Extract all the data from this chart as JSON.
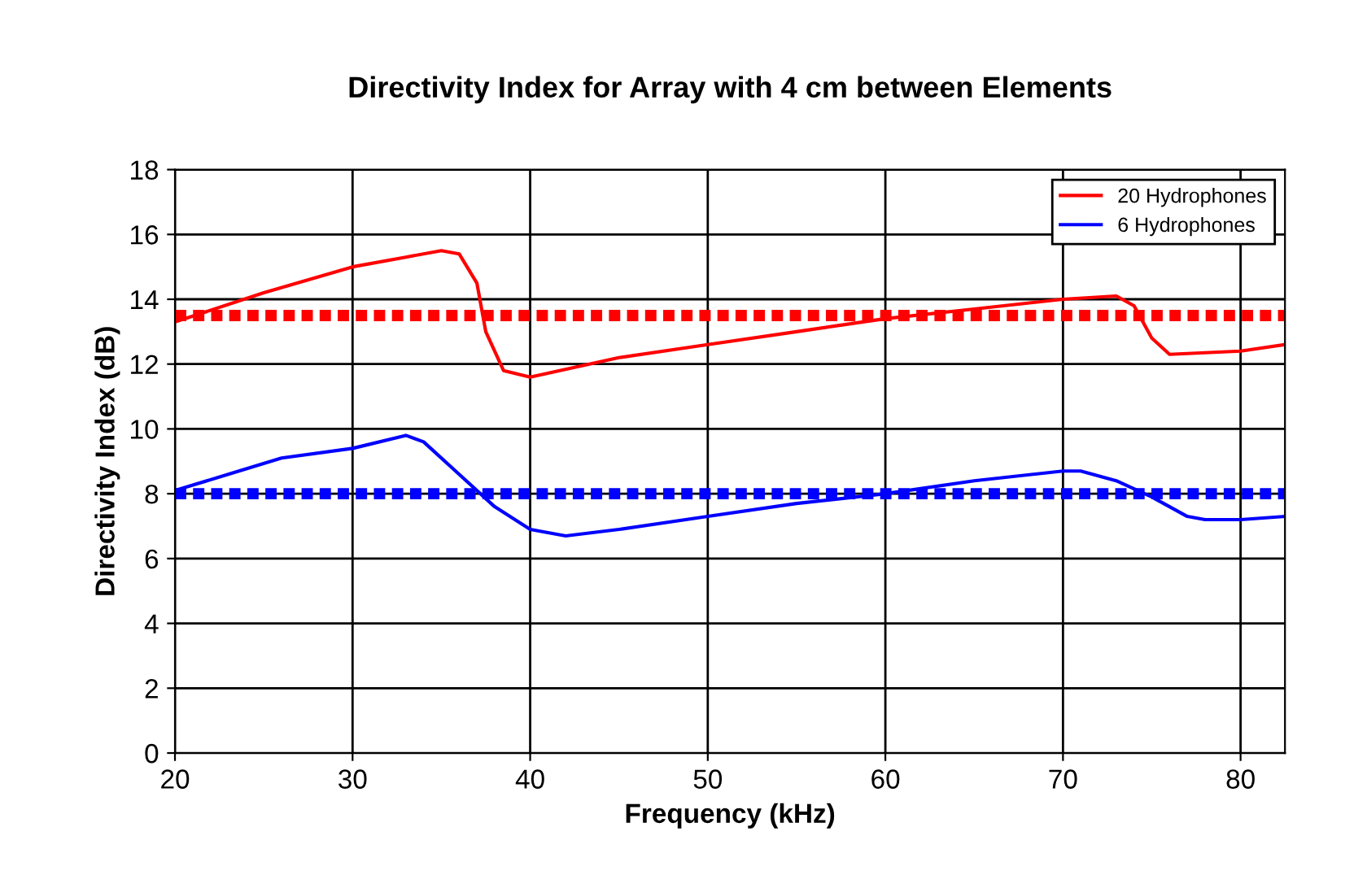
{
  "chart_data": {
    "type": "line",
    "title": "Directivity Index for Array with 4 cm between Elements",
    "xlabel": "Frequency (kHz)",
    "ylabel": "Directivity Index (dB)",
    "series": [
      {
        "name": "20 Hydrophones",
        "color": "#ff0000",
        "x": [
          20,
          25,
          30,
          33,
          35,
          36,
          37,
          37.5,
          38.5,
          40,
          45,
          50,
          55,
          60,
          65,
          70,
          73,
          74,
          75,
          76,
          80,
          82.5
        ],
        "values": [
          13.3,
          14.2,
          15,
          15.3,
          15.5,
          15.4,
          14.5,
          13,
          11.8,
          11.6,
          12.2,
          12.6,
          13,
          13.4,
          13.7,
          14,
          14.1,
          13.8,
          12.8,
          12.3,
          12.4,
          12.6
        ]
      },
      {
        "name": "6 Hydrophones",
        "color": "#0000ff",
        "x": [
          20,
          23,
          26,
          30,
          33,
          34,
          36,
          38,
          40,
          42,
          45,
          50,
          55,
          60,
          65,
          70,
          71,
          73,
          75,
          77,
          78,
          80,
          82.5
        ],
        "values": [
          8.1,
          8.6,
          9.1,
          9.4,
          9.8,
          9.6,
          8.6,
          7.6,
          6.9,
          6.7,
          6.9,
          7.3,
          7.7,
          8,
          8.4,
          8.7,
          8.7,
          8.4,
          7.9,
          7.3,
          7.2,
          7.2,
          7.3
        ]
      }
    ],
    "ref_lines": [
      {
        "axis": "y",
        "value": 13.5,
        "color": "#ff0000",
        "line_style": "dotted"
      },
      {
        "axis": "y",
        "value": 8,
        "color": "#0000ff",
        "line_style": "dotted"
      }
    ],
    "xlim": [
      20,
      82.5
    ],
    "xticks": [
      20,
      30,
      40,
      50,
      60,
      70,
      80
    ],
    "ylim": [
      0,
      18
    ],
    "yticks": [
      0,
      2,
      4,
      6,
      8,
      10,
      12,
      14,
      16,
      18
    ],
    "grid": true,
    "legend": "top right",
    "line_style": "solid",
    "marker": "none"
  }
}
